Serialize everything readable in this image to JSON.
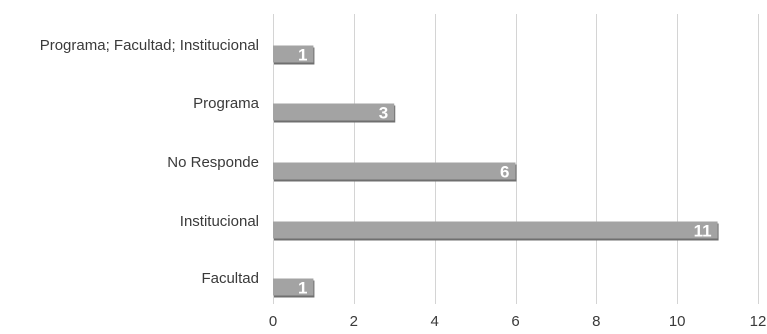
{
  "chart_data": {
    "type": "bar",
    "orientation": "horizontal",
    "categories": [
      "Programa; Facultad; Institucional",
      "Programa",
      "No Responde",
      "Institucional",
      "Facultad"
    ],
    "values": [
      1,
      3,
      6,
      11,
      1
    ],
    "data_labels": [
      "1",
      "3",
      "6",
      "11",
      "1"
    ],
    "xlim": [
      0,
      12
    ],
    "x_ticks": [
      0,
      2,
      4,
      6,
      8,
      10,
      12
    ],
    "x_tick_labels": [
      "0",
      "2",
      "4",
      "6",
      "8",
      "10",
      "12"
    ],
    "grid": true,
    "colors": {
      "bar": "#a3a3a3",
      "bar_shadow": "#6f6f6f",
      "grid": "#d4d4d4",
      "text": "#3a3a3a",
      "data_label": "#ffffff"
    }
  }
}
